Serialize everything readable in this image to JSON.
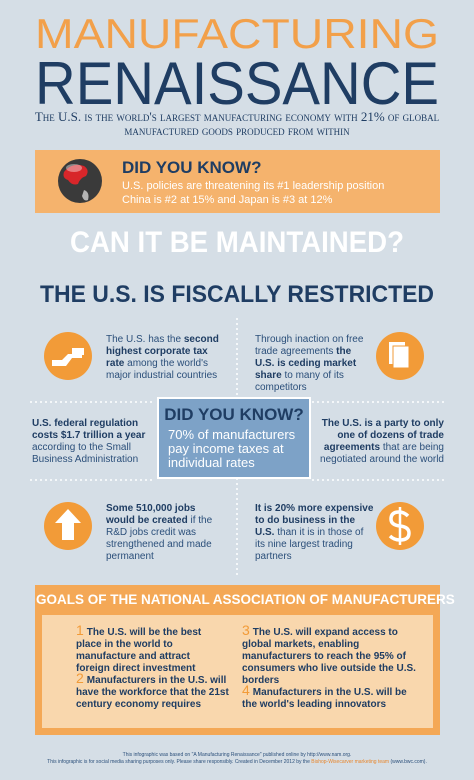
{
  "header": {
    "title_line1": "MANUFACTURING",
    "title_line2": "RENAISSANCE",
    "subtitle": "The U.S. is the world's largest manufacturing economy with 21% of global manufactured goods produced from within"
  },
  "did_you_know_1": {
    "heading": "DID YOU KNOW?",
    "lines": [
      "U.S. policies are threatening its #1 leadership position",
      "China is #2 at 15% and Japan is #3 at 12%"
    ]
  },
  "question": "CAN IT BE MAINTAINED?",
  "section_title": "THE U.S. IS FISCALLY RESTRICTED",
  "facts": [
    {
      "parts": [
        "The U.S. has the ",
        "second highest corporate tax rate",
        " among the world's major industrial countries"
      ]
    },
    {
      "parts": [
        "Through inaction on free trade agreements ",
        "the U.S. is ceding market share",
        " to many of its competitors"
      ]
    },
    {
      "parts": [
        "U.S. federal regulation costs $1.7 trillion a year",
        " according to the Small Business Administration"
      ]
    },
    {
      "parts": [
        "The U.S. is a party to only one of dozens of trade agreements",
        " that are being negotiated around the world"
      ]
    },
    {
      "parts": [
        "Some 510,000 jobs would be created",
        " if the R&D jobs credit was strengthened and made permanent"
      ]
    },
    {
      "parts": [
        "It is 20% more expensive to do business in the U.S.",
        " than it is in those of its nine largest trading partners"
      ]
    }
  ],
  "did_you_know_2": {
    "heading": "DID YOU KNOW?",
    "body": "70% of manufacturers pay income taxes at individual rates"
  },
  "goals": {
    "title": "GOALS OF THE NATIONAL ASSOCIATION OF MANUFACTURERS",
    "items": [
      {
        "number": "1",
        "text": "The U.S. will be the best place in the world to manufacture and attract foreign direct investment"
      },
      {
        "number": "2",
        "text": "Manufacturers in the U.S. will have the workforce that the 21st century economy requires"
      },
      {
        "number": "3",
        "text": "The U.S. will expand access to global markets, enabling manufacturers to reach the 95% of consumers who live outside the U.S. borders"
      },
      {
        "number": "4",
        "text": "Manufacturers in the U.S. will be the world's leading innovators"
      }
    ]
  },
  "footer": {
    "line1": "This infographic was based on \"A Manufacturing Renaissance\" published online by http://www.nam.org.",
    "line2_parts": [
      "This infographic is for social media sharing purposes only. Please share responsibly. Created in December 2012 by the ",
      "Bishop-Wisecarver marketing team",
      " (www.bwc.com)."
    ]
  }
}
